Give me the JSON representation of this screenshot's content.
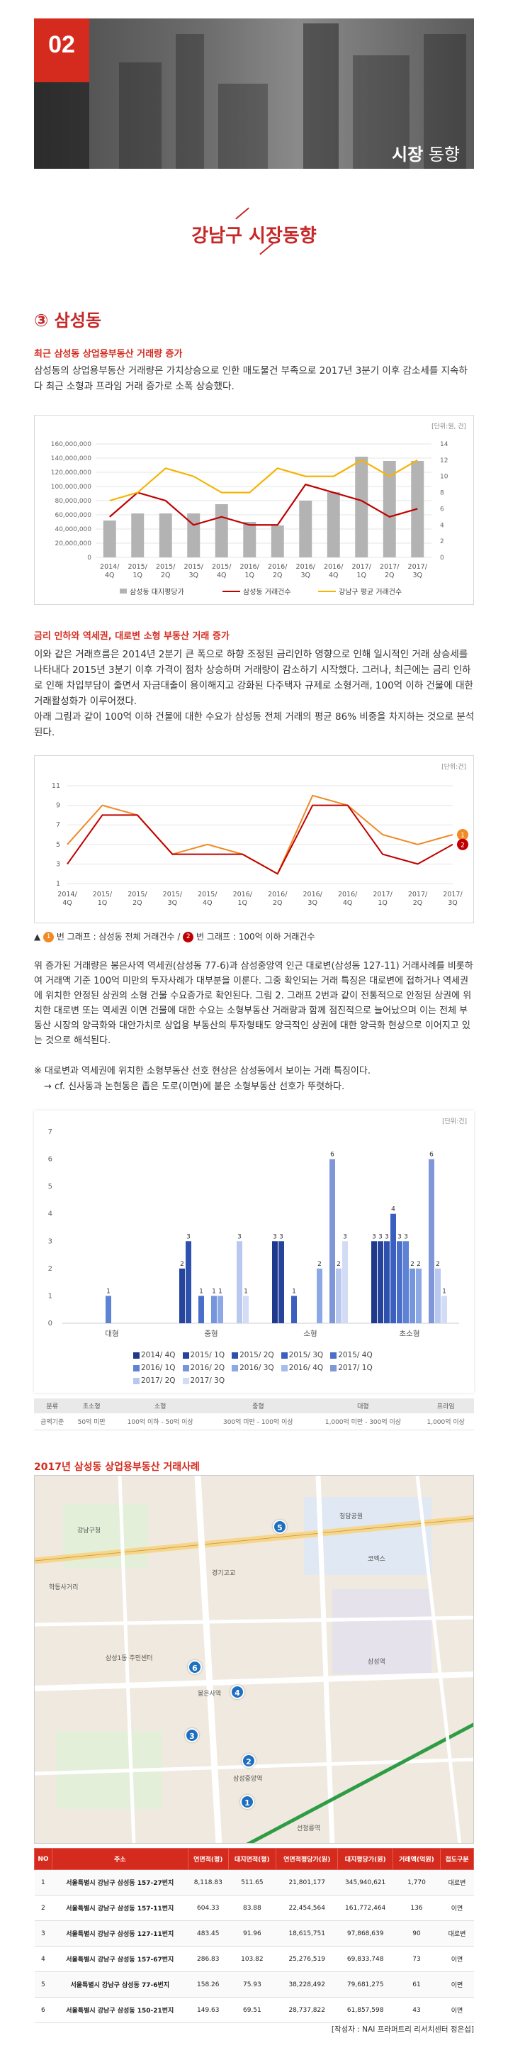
{
  "banner": {
    "number": "02",
    "title_bold": "시장",
    "title_rest": " 동향"
  },
  "section_title": "강남구 시장동향",
  "subsection_title": "③ 삼성동",
  "block1": {
    "heading": "최근 삼성동 상업용부동산 거래량 증가",
    "text": "삼성동의 상업용부동산 거래량은 가치상승으로 인한 매도물건 부족으로 2017년 3분기 이후 감소세를 지속하다 최근 소형과 프라임 거래 증가로 소폭 상승했다."
  },
  "chart1": {
    "unit": "[단위:원, 건]",
    "legend": {
      "bar": "삼성동 대지평당가",
      "red": "삼성동 거래건수",
      "yellow": "강남구 평균 거래건수"
    }
  },
  "block2": {
    "heading": "금리 인하와 역세권, 대로변 소형 부동산 거래 증가",
    "text": "이와 같은 거래흐름은 2014년 2분기 큰 폭으로 하향 조정된 금리인하 영향으로 인해 일시적인 거래 상승세를 나타내다 2015년 3분기 이후 가격이 점차 상승하며 거래량이 감소하기 시작했다. 그러나, 최근에는 금리 인하로 인해 차입부담이 줄면서 자금대출이 용이해지고 강화된 다주택자 규제로 소형거래, 100억 이하 건물에 대한 거래활성화가 이루어졌다.",
    "text2": "아래 그림과 같이 100억 이하 건물에 대한 수요가 삼성동 전체 거래의 평균 86% 비중을 차지하는 것으로 분석된다."
  },
  "chart2": {
    "unit": "[단위:건]",
    "legend_prefix": "▲",
    "legend_1": "번 그래프 : 삼성동 전체 거래건수 /",
    "legend_2": "번 그래프 : 100억 이하 거래건수",
    "badge_1": "1",
    "badge_2": "2"
  },
  "block3": {
    "text": "위 증가된 거래량은 봉은사역 역세권(삼성동 77-6)과 삼성중앙역 인근 대로변(삼성동 127-11) 거래사례를 비롯하여 거래액 기준 100억 미만의 투자사례가 대부분을 이룬다. 그중 확인되는 거래 특징은 대로변에 접하거나 역세권에 위치한 안정된 상권의 소형 건물 수요증가로 확인된다. 그림 2. 그래프 2번과 같이 전통적으로 안정된 상권에 위치한 대로변 또는 역세권 이면 건물에 대한 수요는 소형부동산 거래량과 함께 점진적으로 늘어났으며 이는 전체 부동산 시장의 양극화와 대안가치로 상업용 부동산의 투자형태도 양극적인 상권에 대한 양극화 현상으로 이어지고 있는 것으로 해석된다.",
    "note1": "※ 대로변과 역세권에 위치한 소형부동산 선호 현상은 삼성동에서 보이는 거래 특징이다.",
    "note2": "→ cf. 신사동과 논현동은 좁은 도로(이면)에 붙은 소형부동산 선호가 뚜렷하다."
  },
  "chart3": {
    "unit": "[단위:건]",
    "legend": [
      "2014/ 4Q",
      "2015/ 1Q",
      "2015/ 2Q",
      "2015/ 3Q",
      "2015/ 4Q",
      "2016/ 1Q",
      "2016/ 2Q",
      "2016/ 3Q",
      "2016/ 4Q",
      "2017/ 1Q",
      "2017/ 2Q",
      "2017/ 3Q"
    ]
  },
  "size_table": {
    "headers": [
      "분류",
      "초소형",
      "소형",
      "중형",
      "대형",
      "프라임"
    ],
    "row_label": "금액기준",
    "row": [
      "50억 미만",
      "100억 이하 - 50억 이상",
      "300억 미만 - 100억 이상",
      "1,000억 미만 - 300억 이상",
      "1,000억 이상"
    ]
  },
  "case_title": "2017년 삼성동 상업용부동산 거래사례",
  "map": {
    "labels": [
      "코엑스",
      "삼성역",
      "봉은사역",
      "삼성중앙역",
      "선정릉역",
      "학동사거리",
      "강남구청",
      "삼성1동 주민센터",
      "청담공원",
      "경기고교"
    ],
    "markers": [
      "1",
      "2",
      "3",
      "4",
      "5",
      "6"
    ]
  },
  "deal_table": {
    "headers": [
      "NO",
      "주소",
      "연면적(평)",
      "대지면적(평)",
      "연면적평당가(원)",
      "대지평당가(원)",
      "거래액(억원)",
      "접도구분"
    ],
    "rows": [
      [
        "1",
        "서울특별시 강남구 삼성동 157-27번지",
        "8,118.83",
        "511.65",
        "21,801,177",
        "345,940,621",
        "1,770",
        "대로변"
      ],
      [
        "2",
        "서울특별시 강남구 삼성동 157-11번지",
        "604.33",
        "83.88",
        "22,454,564",
        "161,772,464",
        "136",
        "이면"
      ],
      [
        "3",
        "서울특별시 강남구 삼성동 127-11번지",
        "483.45",
        "91.96",
        "18,615,751",
        "97,868,639",
        "90",
        "대로변"
      ],
      [
        "4",
        "서울특별시 강남구 삼성동 157-67번지",
        "286.83",
        "103.82",
        "25,276,519",
        "69,833,748",
        "73",
        "이면"
      ],
      [
        "5",
        "서울특별시 강남구 삼성동 77-6번지",
        "158.26",
        "75.93",
        "38,228,492",
        "79,681,275",
        "61",
        "이면"
      ],
      [
        "6",
        "서울특별시 강남구 삼성동 150-21번지",
        "149.63",
        "69.51",
        "28,737,822",
        "61,857,598",
        "43",
        "이면"
      ]
    ]
  },
  "source": "[작성자 : NAI 프라퍼트리 리서치센터 정은섭]",
  "colors": {
    "accent": "#d52b1e",
    "bar_gray": "#b3b3b3",
    "line_red": "#c00000",
    "line_yellow": "#f5b400",
    "line_orange": "#f08a24"
  },
  "chart_data": [
    {
      "type": "bar",
      "categories": [
        "2014/ 4Q",
        "2015/ 1Q",
        "2015/ 2Q",
        "2015/ 3Q",
        "2015/ 4Q",
        "2016/ 1Q",
        "2016/ 2Q",
        "2016/ 3Q",
        "2016/ 4Q",
        "2017/ 1Q",
        "2017/ 2Q",
        "2017/ 3Q"
      ],
      "series": [
        {
          "name": "삼성동 대지평당가",
          "kind": "bar",
          "axis": "left",
          "values": [
            52000000,
            62000000,
            62000000,
            62000000,
            75000000,
            50000000,
            45000000,
            80000000,
            92000000,
            142000000,
            136000000,
            136000000
          ]
        },
        {
          "name": "삼성동 거래건수",
          "kind": "line",
          "axis": "right",
          "values": [
            5,
            8,
            7,
            4,
            5,
            4,
            4,
            9,
            8,
            7,
            5,
            6
          ]
        },
        {
          "name": "강남구 평균 거래건수",
          "kind": "line",
          "axis": "right",
          "values": [
            7,
            8,
            11,
            10,
            8,
            8,
            11,
            10,
            10,
            12,
            10,
            12
          ]
        }
      ],
      "ylim": [
        0,
        160000000
      ],
      "yticks": [
        "0",
        "20,000,000",
        "40,000,000",
        "60,000,000",
        "80,000,000",
        "100,000,000",
        "120,000,000",
        "140,000,000",
        "160,000,000"
      ],
      "y2lim": [
        0,
        14
      ],
      "y2ticks": [
        "0",
        "2",
        "4",
        "6",
        "8",
        "10",
        "12",
        "14"
      ],
      "grid": true,
      "legend": "bottom"
    },
    {
      "type": "line",
      "categories": [
        "2014/ 4Q",
        "2015/ 1Q",
        "2015/ 2Q",
        "2015/ 3Q",
        "2015/ 4Q",
        "2016/ 1Q",
        "2016/ 2Q",
        "2016/ 3Q",
        "2016/ 4Q",
        "2017/ 1Q",
        "2017/ 2Q",
        "2017/ 3Q"
      ],
      "series": [
        {
          "name": "1",
          "values": [
            5,
            9,
            8,
            4,
            5,
            4,
            2,
            10,
            9,
            6,
            5,
            6
          ]
        },
        {
          "name": "2",
          "values": [
            3,
            8,
            8,
            4,
            4,
            4,
            2,
            9,
            9,
            4,
            3,
            5
          ]
        }
      ],
      "ylim": [
        1,
        11
      ],
      "yticks": [
        "1",
        "3",
        "5",
        "7",
        "9",
        "11"
      ],
      "grid": true
    },
    {
      "type": "bar",
      "categories": [
        "대형",
        "중형",
        "소형",
        "초소형"
      ],
      "series": [
        {
          "name": "2014/ 4Q",
          "values": [
            0,
            0,
            3,
            3
          ]
        },
        {
          "name": "2015/ 1Q",
          "values": [
            0,
            2,
            3,
            3
          ]
        },
        {
          "name": "2015/ 2Q",
          "values": [
            0,
            3,
            0,
            3
          ]
        },
        {
          "name": "2015/ 3Q",
          "values": [
            0,
            0,
            1,
            4
          ]
        },
        {
          "name": "2015/ 4Q",
          "values": [
            0,
            1,
            0,
            3
          ]
        },
        {
          "name": "2016/ 1Q",
          "values": [
            1,
            0,
            0,
            3
          ]
        },
        {
          "name": "2016/ 2Q",
          "values": [
            0,
            1,
            0,
            2
          ]
        },
        {
          "name": "2016/ 3Q",
          "values": [
            0,
            1,
            2,
            2
          ]
        },
        {
          "name": "2016/ 4Q",
          "values": [
            0,
            0,
            0,
            0
          ]
        },
        {
          "name": "2017/ 1Q",
          "values": [
            0,
            0,
            6,
            6
          ]
        },
        {
          "name": "2017/ 2Q",
          "values": [
            0,
            3,
            2,
            2
          ]
        },
        {
          "name": "2017/ 3Q",
          "values": [
            0,
            1,
            3,
            1
          ]
        }
      ],
      "ylim": [
        0,
        7
      ],
      "yticks": [
        "0",
        "1",
        "2",
        "3",
        "4",
        "5",
        "6",
        "7"
      ],
      "grid": false,
      "legend": "bottom"
    }
  ]
}
